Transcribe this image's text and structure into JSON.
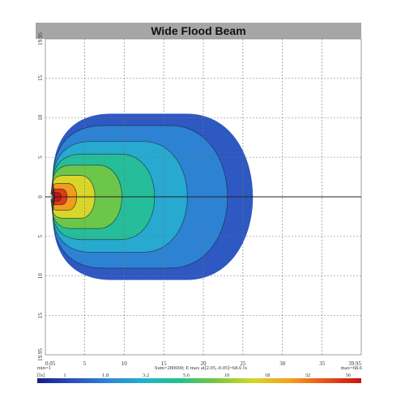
{
  "title": "Wide Flood Beam",
  "chart_data": {
    "type": "heatmap",
    "title": "Wide Flood Beam",
    "xlim": [
      0.05,
      39.95
    ],
    "ylim": [
      -19.95,
      19.95
    ],
    "x_ticks": [
      "0.05",
      "5",
      "10",
      "15",
      "20",
      "25",
      "30",
      "35",
      "39.95"
    ],
    "y_ticks": [
      "19.95",
      "15",
      "10",
      "5",
      "0",
      "5",
      "10",
      "15",
      "19.95"
    ],
    "grid": true,
    "beam_extent": {
      "x_max": 28.5,
      "y_max": 10.5,
      "hot_spot_x": 2.05,
      "hot_spot_y": -0.05
    },
    "footer": {
      "min_label": "min=1",
      "lx_label": "[lx]",
      "stats_label": "Sum=280000; E max at[2.05,-0.05]=68.6 lx",
      "max_label": "max=68.6"
    },
    "colorbar": {
      "ticks": [
        "1",
        "1.8",
        "3.2",
        "5.6",
        "10",
        "18",
        "32",
        "56"
      ],
      "colors": [
        "#1a1a8c",
        "#2a4fc0",
        "#2e86d6",
        "#21b3c9",
        "#27c08a",
        "#7cc63c",
        "#d5d62a",
        "#f0a21c",
        "#e8501a",
        "#c81414"
      ]
    },
    "heat_colors": {
      "c1": "#2e58c2",
      "c2": "#2d82d4",
      "c3": "#27a9d0",
      "c4": "#25bd9a",
      "c5": "#6cc64a",
      "c6": "#d9d62a",
      "c7": "#f39b1c",
      "c8": "#e13a17",
      "c9": "#c91313"
    }
  }
}
